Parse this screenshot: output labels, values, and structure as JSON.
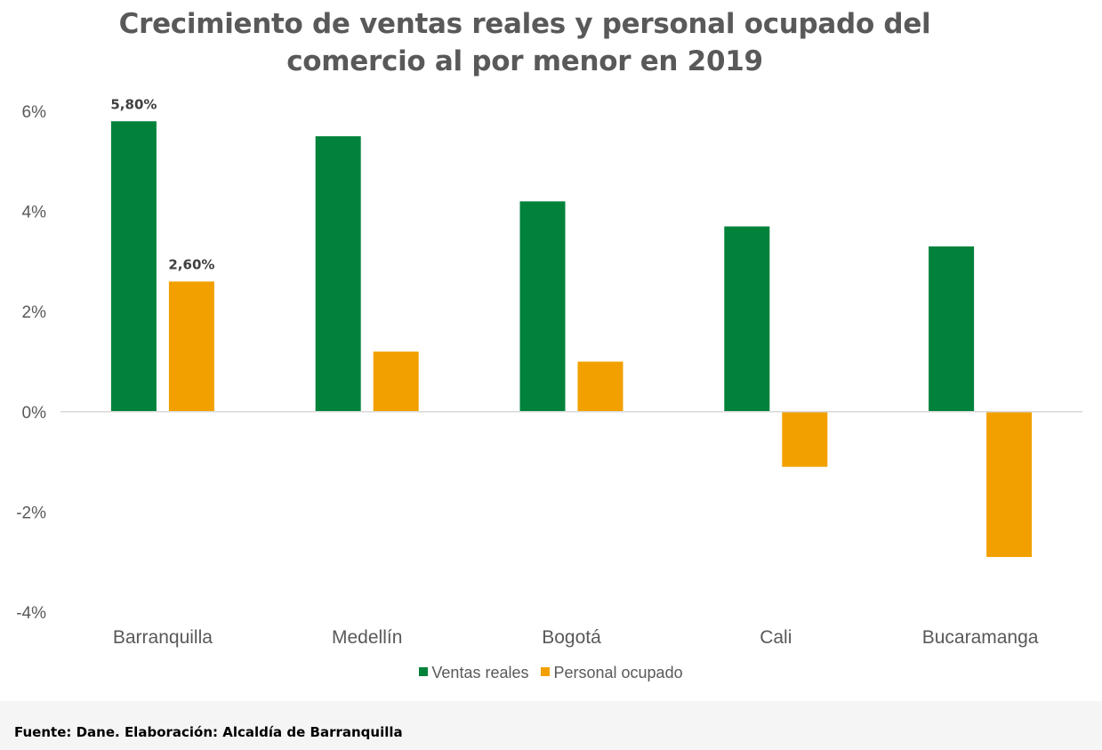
{
  "chart_data": {
    "type": "bar",
    "title_line1": "Crecimiento de  ventas reales y personal ocupado del",
    "title_line2": "comercio al por menor en 2019",
    "categories": [
      "Barranquilla",
      "Medellín",
      "Bogotá",
      "Cali",
      "Bucaramanga"
    ],
    "series": [
      {
        "name": "Ventas reales",
        "color": "#00823B",
        "values": [
          5.8,
          5.5,
          4.2,
          3.7,
          3.3
        ]
      },
      {
        "name": "Personal ocupado",
        "color": "#F2A000",
        "values": [
          2.6,
          1.2,
          1.0,
          -1.1,
          -2.9
        ]
      }
    ],
    "data_labels": [
      {
        "series": 0,
        "category": 0,
        "text": "5,80%"
      },
      {
        "series": 1,
        "category": 0,
        "text": "2,60%"
      }
    ],
    "ylim": [
      -4,
      6
    ],
    "yticks": [
      6,
      4,
      2,
      0,
      -2,
      -4
    ],
    "ytick_labels": [
      "6%",
      "4%",
      "2%",
      "0%",
      "-2%",
      "-4%"
    ],
    "xlabel": "",
    "ylabel": "",
    "grid": false,
    "legend_position": "bottom"
  },
  "footer": {
    "source": "Fuente: Dane. Elaboración: Alcaldía de Barranquilla"
  }
}
